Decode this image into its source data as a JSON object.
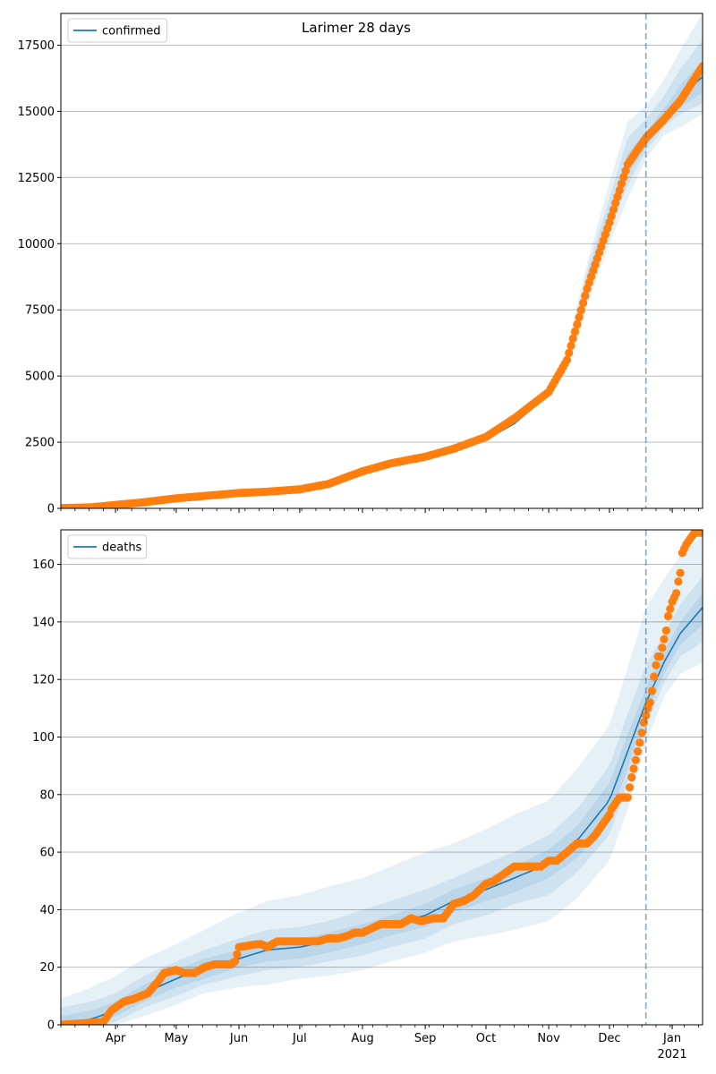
{
  "figure": {
    "title": "Larimer 28 days"
  },
  "x_axis": {
    "tick_labels": [
      "Apr",
      "May",
      "Jun",
      "Jul",
      "Aug",
      "Sep",
      "Oct",
      "Nov",
      "Dec",
      "Jan"
    ],
    "tick_dates": [
      "2020-04-01",
      "2020-05-01",
      "2020-06-01",
      "2020-07-01",
      "2020-08-01",
      "2020-09-01",
      "2020-10-01",
      "2020-11-01",
      "2020-12-01",
      "2021-01-01"
    ],
    "year_label": "2021",
    "range": [
      "2020-03-05",
      "2021-01-16"
    ],
    "forecast_start": "2020-12-19"
  },
  "colors": {
    "model_line": "#1f77b4",
    "observed_points": "#ff7f0e",
    "band": "#1f77b4",
    "grid": "#b0b0b0",
    "forecast_divider": "#1f77b4"
  },
  "chart_data": [
    {
      "type": "line",
      "legend": "confirmed",
      "legend_position": "upper-left",
      "grid": "y",
      "ylim": [
        0,
        18700
      ],
      "yticks": [
        0,
        2500,
        5000,
        7500,
        10000,
        12500,
        15000,
        17500
      ],
      "model_series": {
        "name": "confirmed",
        "x": [
          "2020-03-05",
          "2020-04-01",
          "2020-05-01",
          "2020-06-01",
          "2020-07-01",
          "2020-08-01",
          "2020-09-01",
          "2020-10-01",
          "2020-10-15",
          "2020-11-01",
          "2020-11-10",
          "2020-11-20",
          "2020-12-01",
          "2020-12-10",
          "2020-12-19",
          "2020-12-28",
          "2021-01-05",
          "2021-01-16"
        ],
        "y": [
          10,
          100,
          380,
          600,
          730,
          1400,
          2000,
          2600,
          3200,
          4300,
          5600,
          8500,
          11000,
          13000,
          13900,
          14800,
          15600,
          16300
        ]
      },
      "bands": [
        {
          "lower": [
            10,
            100,
            380,
            600,
            730,
            1400,
            2000,
            2600,
            3200,
            4250,
            5200,
            7700,
            10000,
            11700,
            13200,
            14100,
            14400,
            14900
          ],
          "upper": [
            10,
            100,
            380,
            600,
            730,
            1400,
            2000,
            2600,
            3200,
            4400,
            6000,
            9300,
            12300,
            14600,
            15200,
            16200,
            17300,
            18700
          ]
        },
        {
          "lower": [
            10,
            100,
            380,
            600,
            730,
            1400,
            2000,
            2600,
            3200,
            4280,
            5350,
            8000,
            10500,
            12200,
            13500,
            14400,
            14900,
            15300
          ],
          "upper": [
            10,
            100,
            380,
            600,
            730,
            1400,
            2000,
            2600,
            3200,
            4360,
            5850,
            9000,
            11700,
            14000,
            14700,
            15600,
            16600,
            17700
          ]
        },
        {
          "lower": [
            10,
            100,
            380,
            600,
            730,
            1400,
            2000,
            2600,
            3200,
            4300,
            5450,
            8200,
            10700,
            12600,
            13650,
            14550,
            15150,
            15700
          ],
          "upper": [
            10,
            100,
            380,
            600,
            730,
            1400,
            2000,
            2600,
            3200,
            4330,
            5750,
            8800,
            11300,
            13400,
            14200,
            15100,
            16000,
            16900
          ]
        }
      ],
      "observed": {
        "x": [
          "2020-03-05",
          "2020-03-20",
          "2020-04-01",
          "2020-04-15",
          "2020-05-01",
          "2020-05-15",
          "2020-06-01",
          "2020-06-15",
          "2020-07-01",
          "2020-07-15",
          "2020-08-01",
          "2020-08-15",
          "2020-09-01",
          "2020-09-15",
          "2020-10-01",
          "2020-10-15",
          "2020-11-01",
          "2020-11-10",
          "2020-11-20",
          "2020-12-01",
          "2020-12-10",
          "2020-12-19",
          "2020-12-28",
          "2021-01-05",
          "2021-01-16"
        ],
        "y": [
          10,
          40,
          130,
          230,
          380,
          470,
          580,
          630,
          720,
          920,
          1400,
          1700,
          1950,
          2250,
          2700,
          3400,
          4400,
          5600,
          8300,
          10800,
          13000,
          14000,
          14700,
          15400,
          16700
        ]
      }
    },
    {
      "type": "line",
      "legend": "deaths",
      "legend_position": "upper-left",
      "grid": "y",
      "ylim": [
        0,
        172
      ],
      "yticks": [
        0,
        20,
        40,
        60,
        80,
        100,
        120,
        140,
        160
      ],
      "model_series": {
        "name": "deaths",
        "x": [
          "2020-03-05",
          "2020-03-20",
          "2020-04-01",
          "2020-04-15",
          "2020-05-01",
          "2020-05-15",
          "2020-06-01",
          "2020-06-15",
          "2020-07-01",
          "2020-07-15",
          "2020-08-01",
          "2020-08-15",
          "2020-09-01",
          "2020-09-15",
          "2020-10-01",
          "2020-10-15",
          "2020-11-01",
          "2020-11-15",
          "2020-12-01",
          "2020-12-10",
          "2020-12-19",
          "2020-12-28",
          "2021-01-05",
          "2021-01-16"
        ],
        "y": [
          0,
          2,
          5,
          11,
          16,
          20,
          23,
          26,
          27,
          29,
          32,
          35,
          38,
          43,
          47,
          51,
          56,
          64,
          78,
          95,
          112,
          126,
          136,
          145
        ]
      },
      "bands": [
        {
          "lower": [
            0,
            0,
            0,
            3,
            7,
            11,
            13,
            14,
            16,
            17,
            19,
            22,
            25,
            29,
            31,
            33,
            36,
            44,
            57,
            75,
            98,
            114,
            122,
            126
          ],
          "upper": [
            9,
            13,
            17,
            23,
            28,
            33,
            39,
            43,
            45,
            48,
            51,
            55,
            60,
            63,
            68,
            73,
            78,
            89,
            104,
            124,
            145,
            155,
            163,
            170
          ]
        },
        {
          "lower": [
            0,
            0,
            1,
            6,
            10,
            14,
            17,
            19,
            20,
            22,
            24,
            27,
            30,
            35,
            38,
            42,
            45,
            53,
            66,
            84,
            104,
            119,
            128,
            133
          ],
          "upper": [
            6,
            8,
            11,
            17,
            22,
            26,
            30,
            33,
            34,
            36,
            40,
            43,
            47,
            51,
            56,
            60,
            66,
            75,
            90,
            108,
            125,
            136,
            146,
            156
          ]
        },
        {
          "lower": [
            0,
            0,
            3,
            8,
            13,
            16,
            20,
            22,
            23,
            25,
            28,
            31,
            34,
            39,
            43,
            46,
            51,
            58,
            72,
            89,
            108,
            122,
            132,
            139
          ],
          "upper": [
            3,
            5,
            8,
            14,
            19,
            23,
            26,
            29,
            30,
            32,
            35,
            38,
            42,
            47,
            51,
            55,
            61,
            69,
            84,
            101,
            117,
            130,
            140,
            150
          ]
        }
      ],
      "observed": {
        "x": [
          "2020-03-05",
          "2020-03-26",
          "2020-03-30",
          "2020-04-05",
          "2020-04-10",
          "2020-04-17",
          "2020-04-22",
          "2020-04-25",
          "2020-05-01",
          "2020-05-05",
          "2020-05-10",
          "2020-05-15",
          "2020-05-20",
          "2020-05-28",
          "2020-05-30",
          "2020-06-01",
          "2020-06-10",
          "2020-06-12",
          "2020-06-15",
          "2020-06-20",
          "2020-07-01",
          "2020-07-05",
          "2020-07-10",
          "2020-07-15",
          "2020-07-20",
          "2020-07-25",
          "2020-07-28",
          "2020-08-01",
          "2020-08-10",
          "2020-08-14",
          "2020-08-20",
          "2020-08-25",
          "2020-08-30",
          "2020-09-05",
          "2020-09-10",
          "2020-09-15",
          "2020-09-20",
          "2020-09-25",
          "2020-10-01",
          "2020-10-05",
          "2020-10-15",
          "2020-10-25",
          "2020-10-28",
          "2020-11-01",
          "2020-11-05",
          "2020-11-10",
          "2020-11-15",
          "2020-11-20",
          "2020-11-24",
          "2020-12-01",
          "2020-12-02",
          "2020-12-06",
          "2020-12-08",
          "2020-12-10",
          "2020-12-12",
          "2020-12-14",
          "2020-12-16",
          "2020-12-18",
          "2020-12-20",
          "2020-12-21",
          "2020-12-22",
          "2020-12-23",
          "2020-12-24",
          "2020-12-25",
          "2020-12-26",
          "2020-12-28",
          "2020-12-29",
          "2020-12-30",
          "2021-01-01",
          "2021-01-03",
          "2021-01-04",
          "2021-01-05",
          "2021-01-06",
          "2021-01-08",
          "2021-01-10",
          "2021-01-12",
          "2021-01-14",
          "2021-01-16"
        ],
        "y": [
          0,
          1,
          5,
          8,
          9,
          11,
          15,
          18,
          19,
          18,
          18,
          20,
          21,
          21,
          22,
          27,
          28,
          28,
          27,
          29,
          29,
          29,
          29,
          30,
          30,
          31,
          32,
          32,
          35,
          35,
          35,
          37,
          36,
          37,
          37,
          42,
          43,
          45,
          49,
          50,
          55,
          55,
          55,
          57,
          57,
          60,
          63,
          63,
          66,
          73,
          75,
          79,
          79,
          79,
          86,
          92,
          98,
          105,
          110,
          112,
          116,
          121,
          125,
          128,
          128,
          134,
          137,
          142,
          147,
          150,
          154,
          157,
          164,
          167,
          169,
          171,
          171,
          171
        ]
      }
    }
  ]
}
